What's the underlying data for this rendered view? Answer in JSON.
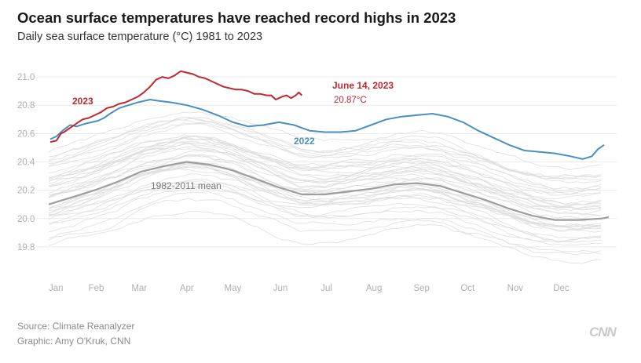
{
  "header": {
    "title": "Ocean surface temperatures have reached record highs in 2023",
    "subtitle": "Daily sea surface temperature (°C) 1981 to 2023"
  },
  "footer": {
    "source": "Source: Climate Reanalyzer",
    "graphic": "Graphic: Amy O'Kruk, CNN",
    "logo": "CNN"
  },
  "colors": {
    "y2023": "#c1272d",
    "y2022": "#4a8fc4",
    "mean": "#9e9e9e",
    "background_years": "#dcdcdc",
    "grid": "#ececec",
    "axis_text": "#b0b0b0"
  },
  "chart_data": {
    "type": "line",
    "xlabel": "",
    "ylabel": "",
    "ylim": [
      19.65,
      21.1
    ],
    "xlim": [
      0,
      365
    ],
    "grid": true,
    "y_ticks": [
      "19.8",
      "20.0",
      "20.2",
      "20.4",
      "20.6",
      "20.8",
      "21.0"
    ],
    "x_ticks": [
      "Jan",
      "Feb",
      "Mar",
      "Apr",
      "May",
      "Jun",
      "Jul",
      "Aug",
      "Sep",
      "Oct",
      "Nov",
      "Dec"
    ],
    "annotations": {
      "label_2023": "2023",
      "label_2022": "2022",
      "label_mean": "1982-2011 mean",
      "latest_date": "June 14, 2023",
      "latest_value": "20.87°C"
    },
    "series": [
      {
        "name": "2023",
        "x": [
          1,
          5,
          8,
          10,
          14,
          18,
          22,
          26,
          30,
          34,
          38,
          42,
          46,
          50,
          54,
          58,
          62,
          66,
          70,
          74,
          78,
          82,
          86,
          90,
          94,
          98,
          102,
          106,
          110,
          114,
          118,
          122,
          126,
          130,
          134,
          138,
          142,
          145,
          148,
          150,
          152,
          155,
          158,
          161,
          163,
          165
        ],
        "y": [
          20.54,
          20.55,
          20.6,
          20.61,
          20.64,
          20.67,
          20.7,
          20.71,
          20.73,
          20.75,
          20.78,
          20.79,
          20.81,
          20.82,
          20.84,
          20.86,
          20.89,
          20.93,
          20.98,
          21.0,
          20.99,
          21.01,
          21.04,
          21.03,
          21.02,
          21.0,
          20.99,
          20.97,
          20.95,
          20.93,
          20.92,
          20.91,
          20.91,
          20.9,
          20.88,
          20.88,
          20.87,
          20.87,
          20.84,
          20.85,
          20.86,
          20.87,
          20.85,
          20.87,
          20.89,
          20.87
        ]
      },
      {
        "name": "2022",
        "x": [
          1,
          5,
          9,
          14,
          18,
          24,
          28,
          32,
          36,
          40,
          46,
          52,
          58,
          66,
          72,
          80,
          90,
          100,
          110,
          120,
          130,
          140,
          150,
          160,
          170,
          180,
          190,
          200,
          210,
          220,
          230,
          240,
          250,
          260,
          270,
          280,
          290,
          300,
          310,
          320,
          330,
          340,
          348,
          354,
          358,
          362
        ],
        "y": [
          20.56,
          20.58,
          20.62,
          20.66,
          20.65,
          20.67,
          20.68,
          20.69,
          20.71,
          20.74,
          20.78,
          20.8,
          20.82,
          20.84,
          20.83,
          20.82,
          20.8,
          20.77,
          20.73,
          20.68,
          20.65,
          20.66,
          20.68,
          20.66,
          20.62,
          20.61,
          20.61,
          20.62,
          20.66,
          20.7,
          20.72,
          20.73,
          20.74,
          20.72,
          20.68,
          20.62,
          20.57,
          20.52,
          20.48,
          20.47,
          20.46,
          20.44,
          20.42,
          20.44,
          20.49,
          20.52
        ]
      },
      {
        "name": "1982-2011 mean",
        "x": [
          0,
          15,
          30,
          45,
          60,
          75,
          90,
          105,
          120,
          135,
          150,
          165,
          180,
          195,
          210,
          225,
          240,
          255,
          270,
          285,
          300,
          315,
          330,
          345,
          360,
          365
        ],
        "y": [
          20.1,
          20.15,
          20.2,
          20.26,
          20.33,
          20.37,
          20.4,
          20.38,
          20.34,
          20.28,
          20.22,
          20.17,
          20.17,
          20.19,
          20.21,
          20.24,
          20.25,
          20.23,
          20.18,
          20.13,
          20.07,
          20.02,
          19.99,
          19.99,
          20.0,
          20.01
        ]
      }
    ]
  }
}
